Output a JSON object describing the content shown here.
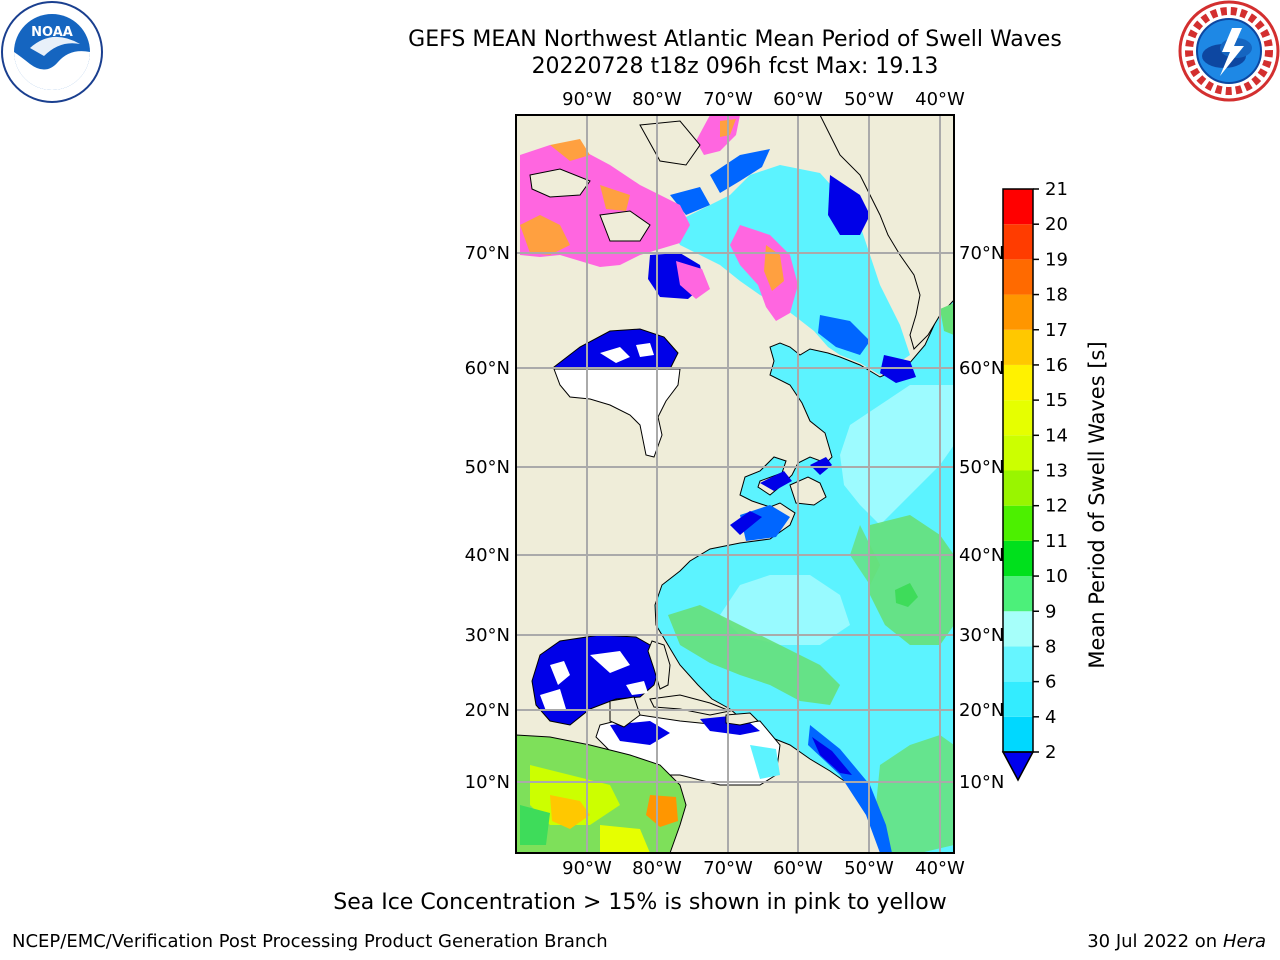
{
  "title": {
    "line1": "GEFS MEAN Northwest Atlantic Mean Period of Swell Waves",
    "line2": "20220728 t18z 096h fcst   Max: 19.13"
  },
  "map": {
    "lon_labels": [
      "90°W",
      "80°W",
      "70°W",
      "60°W",
      "50°W",
      "40°W"
    ],
    "lat_labels": [
      "70°N",
      "60°N",
      "50°N",
      "40°N",
      "30°N",
      "20°N",
      "10°N"
    ]
  },
  "colorbar": {
    "label": "Mean Period of Swell Waves [s]",
    "ticks": [
      "2",
      "4",
      "6",
      "8",
      "9",
      "10",
      "11",
      "12",
      "13",
      "14",
      "15",
      "16",
      "17",
      "18",
      "19",
      "20",
      "21"
    ],
    "colors": [
      "#0066ff",
      "#00d8ff",
      "#33ecff",
      "#66f5ff",
      "#a6fffa",
      "#4cf07a",
      "#00e01c",
      "#4cf000",
      "#99f500",
      "#ccff00",
      "#e6ff00",
      "#fff200",
      "#ffc800",
      "#ff9600",
      "#ff6a00",
      "#ff3c00",
      "#ff0000"
    ],
    "under_color": "#0000ee"
  },
  "caption": "Sea Ice Concentration > 15% is shown in pink to yellow",
  "footer": {
    "left": "NCEP/EMC/Verification Post Processing Product Generation Branch",
    "right_prefix": "30 Jul 2022 on ",
    "right_host": "Hera"
  },
  "colors": {
    "land": "#efedd9",
    "ocean_base": "#5cf3ff",
    "ocean_light": "#a8fbff",
    "nodata": "#ffffff",
    "deep_blue": "#0000e8",
    "mid_blue": "#0066ff",
    "green": "#66e07a",
    "ice_pink": "#ff66e0",
    "ice_orange": "#ffa040"
  }
}
